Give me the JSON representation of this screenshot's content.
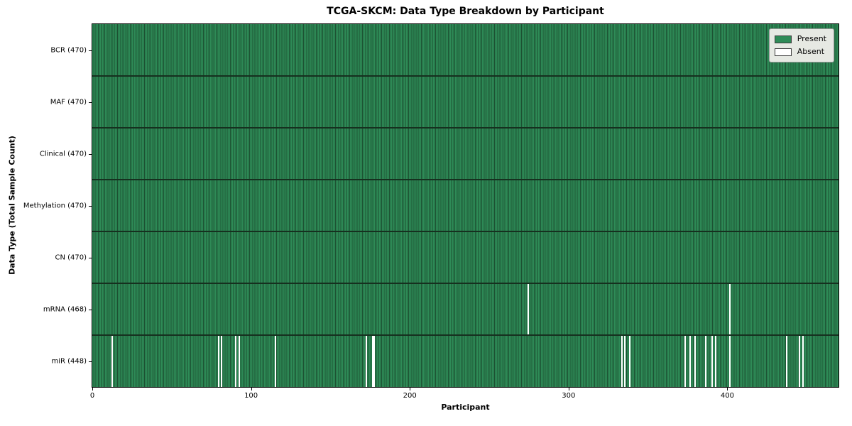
{
  "chart_data": {
    "type": "heatmap",
    "title": "TCGA-SKCM: Data Type Breakdown by Participant",
    "xlabel": "Participant",
    "ylabel": "Data Type (Total Sample Count)",
    "x_range": [
      0,
      470
    ],
    "x_ticks": [
      0,
      100,
      200,
      300,
      400
    ],
    "n_participants": 470,
    "grid": false,
    "legend": {
      "position": "upper right",
      "entries": [
        {
          "label": "Present",
          "color": "#2e8b57"
        },
        {
          "label": "Absent",
          "color": "#ffffff"
        }
      ]
    },
    "rows": [
      {
        "label": "BCR (470)",
        "data_type": "BCR",
        "total": 470,
        "absent_participants": []
      },
      {
        "label": "MAF (470)",
        "data_type": "MAF",
        "total": 470,
        "absent_participants": []
      },
      {
        "label": "Clinical (470)",
        "data_type": "Clinical",
        "total": 470,
        "absent_participants": []
      },
      {
        "label": "Methylation (470)",
        "data_type": "Methylation",
        "total": 470,
        "absent_participants": []
      },
      {
        "label": "CN (470)",
        "data_type": "CN",
        "total": 470,
        "absent_participants": []
      },
      {
        "label": "mRNA (468)",
        "data_type": "mRNA",
        "total": 468,
        "absent_participants": [
          274,
          401
        ]
      },
      {
        "label": "miR (448)",
        "data_type": "miR",
        "total": 448,
        "absent_participants": [
          12,
          79,
          81,
          90,
          92,
          115,
          172,
          176,
          177,
          333,
          335,
          338,
          373,
          376,
          379,
          386,
          390,
          392,
          401,
          437,
          445,
          447
        ]
      }
    ],
    "colors": {
      "present": "#2e8b57",
      "absent": "#ffffff",
      "cell_edge": "#1c5132",
      "row_boundary": "#16301f",
      "spine": "#000000"
    }
  }
}
